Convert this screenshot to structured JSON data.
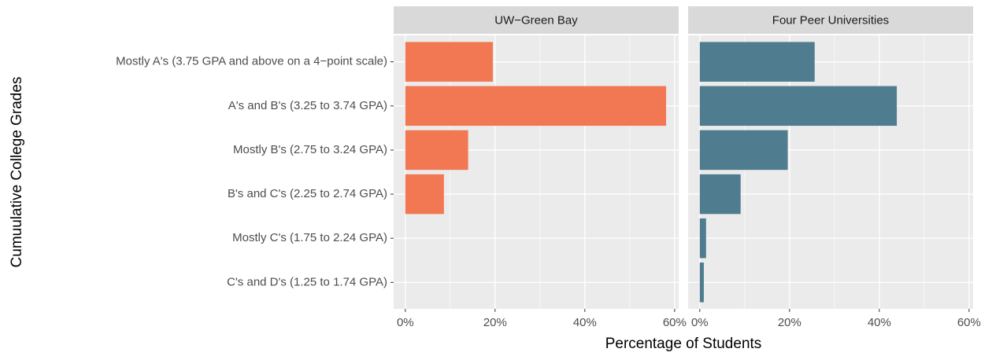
{
  "chart_data": {
    "type": "bar",
    "orientation": "horizontal",
    "facets": true,
    "x_label": "Percentage of Students",
    "y_label": "Cumuulative College Grades",
    "categories": [
      "Mostly A's (3.75 GPA and above on a 4−point scale)",
      "A's and B's (3.25 to 3.74 GPA)",
      "Mostly B's (2.75 to 3.24 GPA)",
      "B's and C's (2.25 to 2.74 GPA)",
      "Mostly C's (1.75 to 2.24 GPA)",
      "C's and D's (1.25 to 1.74 GPA)"
    ],
    "series": [
      {
        "name": "UW−Green Bay",
        "color": "#f27853",
        "values": [
          19.5,
          58.1,
          14.0,
          8.6,
          0,
          0
        ]
      },
      {
        "name": "Four Peer Universities",
        "color": "#4f7c8e",
        "values": [
          25.6,
          43.9,
          19.6,
          9.1,
          1.4,
          0.9
        ]
      }
    ],
    "xlim": [
      -2.6,
      60.9
    ],
    "xticks": [
      {
        "value": 0,
        "label": "0%"
      },
      {
        "value": 20,
        "label": "20%"
      },
      {
        "value": 40,
        "label": "40%"
      },
      {
        "value": 60,
        "label": "60%"
      }
    ],
    "xminor_ticks": [
      10,
      30,
      50
    ],
    "grid": true
  }
}
